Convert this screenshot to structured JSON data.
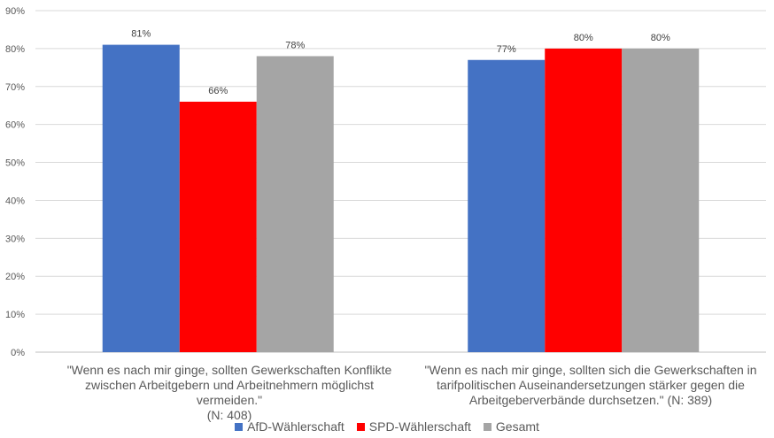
{
  "chart_data": {
    "type": "bar",
    "categories": [
      {
        "lines": [
          "\"Wenn es nach mir ginge, sollten Gewerkschaften Konflikte",
          "zwischen Arbeitgebern und Arbeitnehmern möglichst vermeiden.\"",
          "(N: 408)"
        ]
      },
      {
        "lines": [
          "\"Wenn es nach mir ginge, sollten sich die Gewerkschaften in",
          "tarifpolitischen Auseinandersetzungen stärker gegen die",
          "Arbeitgeberverbände durchsetzen.\" (N: 389)"
        ]
      }
    ],
    "series": [
      {
        "name": "AfD-Wählerschaft",
        "color": "#4472C4",
        "values": [
          81,
          77
        ],
        "labels": [
          "81%",
          "77%"
        ]
      },
      {
        "name": "SPD-Wählerschaft",
        "color": "#FF0000",
        "values": [
          66,
          80
        ],
        "labels": [
          "66%",
          "80%"
        ]
      },
      {
        "name": "Gesamt",
        "color": "#A5A5A5",
        "values": [
          78,
          80
        ],
        "labels": [
          "78%",
          "80%"
        ]
      }
    ],
    "ylim": [
      0,
      90
    ],
    "yticks": [
      0,
      10,
      20,
      30,
      40,
      50,
      60,
      70,
      80,
      90
    ],
    "ytick_labels": [
      "0%",
      "10%",
      "20%",
      "30%",
      "40%",
      "50%",
      "60%",
      "70%",
      "80%",
      "90%"
    ],
    "grid": true,
    "legend_position": "bottom"
  }
}
